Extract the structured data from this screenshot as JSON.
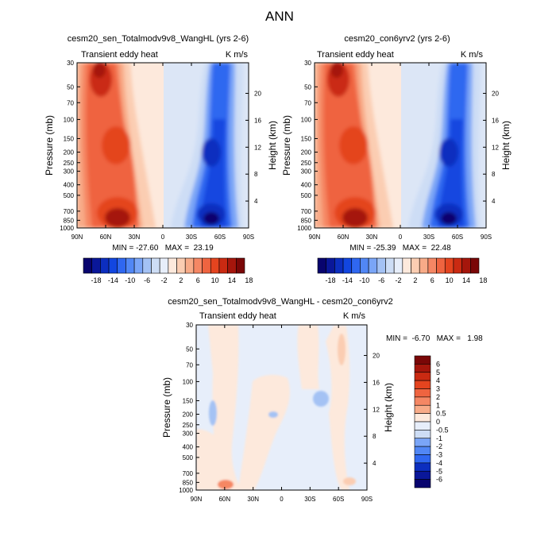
{
  "figure_title": "ANN",
  "chart_data": [
    {
      "type": "contour",
      "panel": "left",
      "title": "cesm20_sen_Totalmodv9v8_WangHL (yrs 2-6)",
      "field_label": "Transient eddy heat",
      "units": "K m/s",
      "xlabel": "",
      "ylabel": "Pressure (mb)",
      "y2label": "Height (km)",
      "x_ticks": [
        "90N",
        "60N",
        "30N",
        "0",
        "30S",
        "60S",
        "90S"
      ],
      "y_ticks": [
        "30",
        "50",
        "70",
        "100",
        "150",
        "200",
        "250",
        "300",
        "400",
        "500",
        "700",
        "850",
        "1000"
      ],
      "y2_ticks": [
        "20",
        "16",
        "12",
        "8",
        "4"
      ],
      "stats": "MIN = -27.60   MAX =  23.19",
      "min": -27.6,
      "max": 23.19
    },
    {
      "type": "contour",
      "panel": "right",
      "title": "cesm20_con6yrv2 (yrs 2-6)",
      "field_label": "Transient eddy heat",
      "units": "K m/s",
      "xlabel": "",
      "ylabel": "Pressure (mb)",
      "y2label": "Height (km)",
      "x_ticks": [
        "90N",
        "60N",
        "30N",
        "0",
        "30S",
        "60S",
        "90S"
      ],
      "y_ticks": [
        "30",
        "50",
        "70",
        "100",
        "150",
        "200",
        "250",
        "300",
        "400",
        "500",
        "700",
        "850",
        "1000"
      ],
      "y2_ticks": [
        "20",
        "16",
        "12",
        "8",
        "4"
      ],
      "stats": "MIN = -25.39   MAX =  22.48",
      "min": -25.39,
      "max": 22.48
    },
    {
      "type": "contour",
      "panel": "difference",
      "title": "cesm20_sen_Totalmodv9v8_WangHL - cesm20_con6yrv2",
      "field_label": "Transient eddy heat",
      "units": "K m/s",
      "xlabel": "",
      "ylabel": "Pressure (mb)",
      "y2label": "Height (km)",
      "x_ticks": [
        "90N",
        "60N",
        "30N",
        "0",
        "30S",
        "60S",
        "90S"
      ],
      "y_ticks": [
        "30",
        "50",
        "70",
        "100",
        "150",
        "200",
        "250",
        "300",
        "400",
        "500",
        "700",
        "850",
        "1000"
      ],
      "y2_ticks": [
        "20",
        "16",
        "12",
        "8",
        "4"
      ],
      "stats": "MIN =  -6.70   MAX =   1.98",
      "min": -6.7,
      "max": 1.98
    }
  ],
  "colorbar_main": {
    "labels": [
      "-18",
      "-14",
      "-10",
      "-6",
      "-2",
      "2",
      "6",
      "10",
      "14",
      "18"
    ],
    "colors": [
      "#08046e",
      "#0a1799",
      "#0c2ebf",
      "#1246e0",
      "#2f67f0",
      "#5187f5",
      "#7aa5f7",
      "#a4c2f4",
      "#cdddf5",
      "#e7eefa",
      "#fde9dc",
      "#fbcdb2",
      "#f8ab88",
      "#f58764",
      "#ef6440",
      "#e4441f",
      "#ca2a12",
      "#a5160c",
      "#7a0707"
    ]
  },
  "colorbar_diff": {
    "labels": [
      "6",
      "5",
      "4",
      "3",
      "2",
      "1",
      "0.5",
      "0",
      "-0.5",
      "-1",
      "-2",
      "-3",
      "-4",
      "-5",
      "-6"
    ],
    "colors": [
      "#7a0707",
      "#a5160c",
      "#ca2a12",
      "#e4441f",
      "#ef6440",
      "#f58764",
      "#f8ab88",
      "#fde9dc",
      "#e7eefa",
      "#cdddf5",
      "#7aa5f7",
      "#5187f5",
      "#2f67f0",
      "#0c2ebf",
      "#0a1799",
      "#08046e"
    ]
  }
}
